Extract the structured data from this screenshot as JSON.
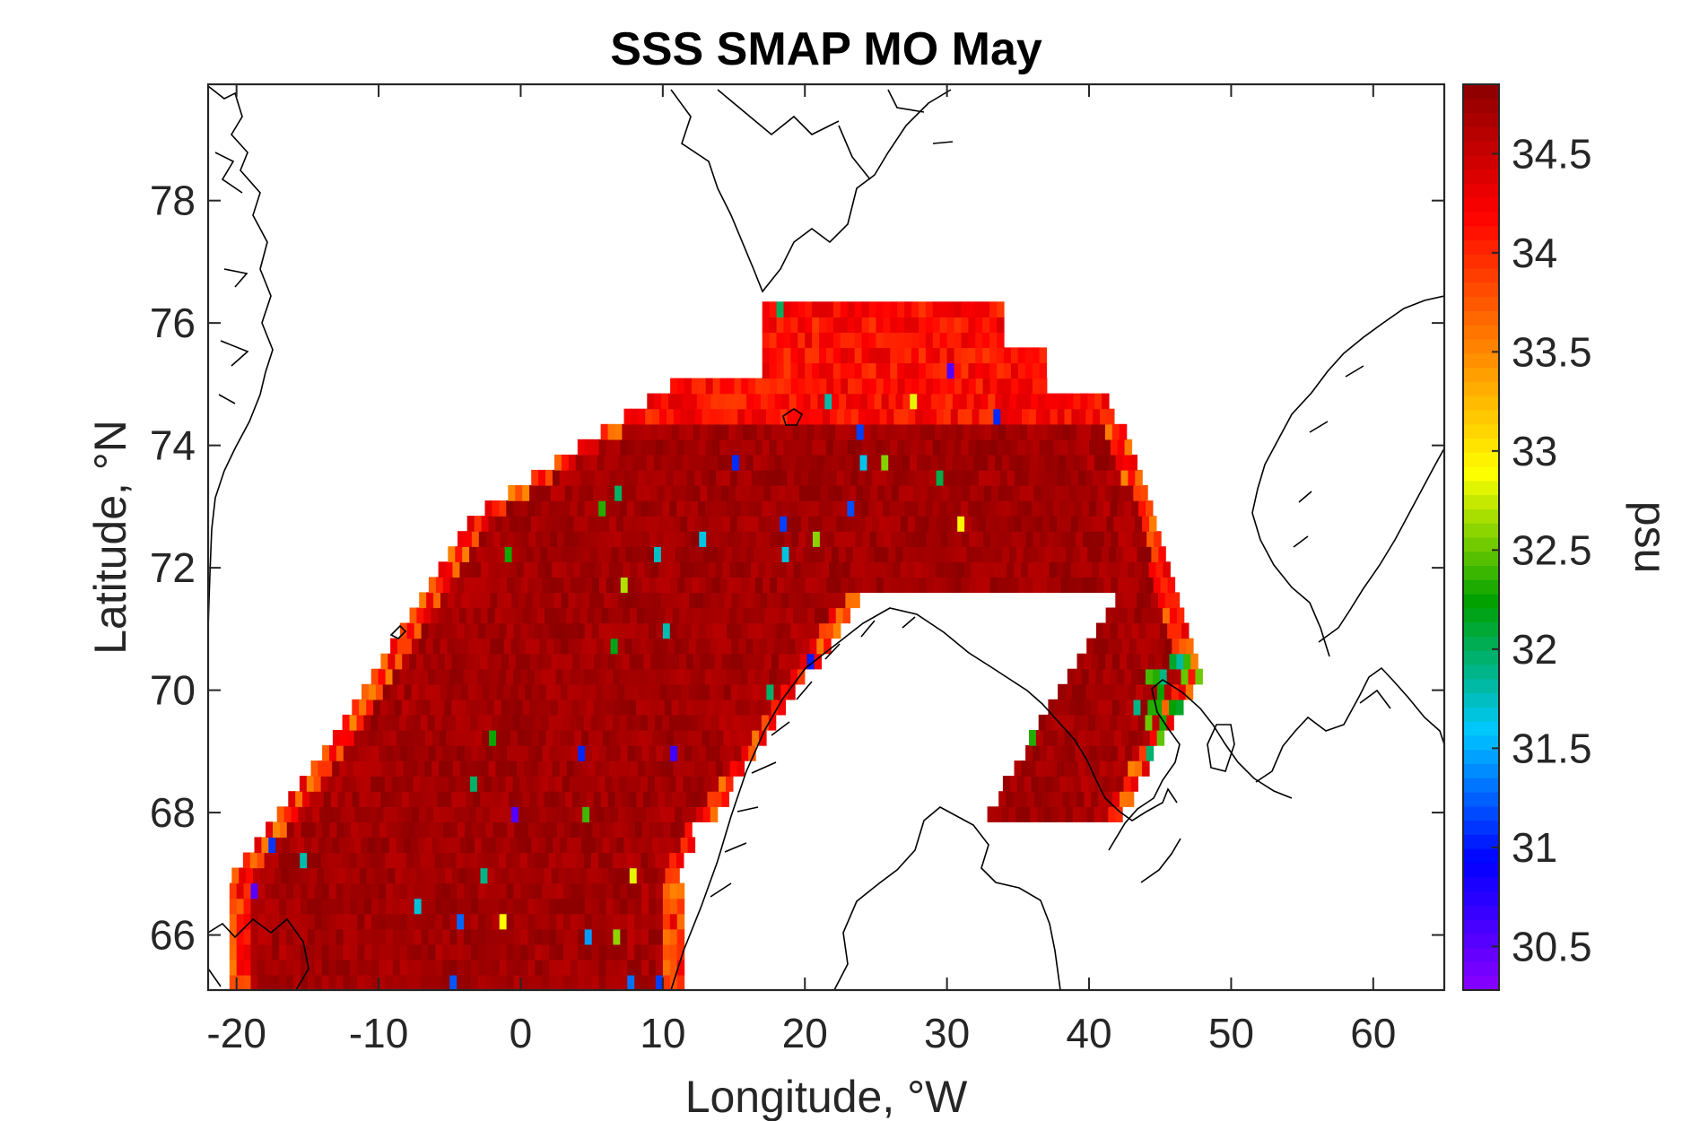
{
  "chart_data": {
    "type": "heatmap",
    "title": "SSS SMAP MO May",
    "xlabel": "Longitude, °W",
    "ylabel": "Latitude, °N",
    "colorbar_label": "psu",
    "xlim": [
      -22,
      65
    ],
    "ylim": [
      65.1,
      79.9
    ],
    "clim": [
      30.28,
      34.85
    ],
    "x_ticks": [
      -20,
      -10,
      0,
      10,
      20,
      30,
      40,
      50,
      60
    ],
    "x_tick_labels": [
      "-20",
      "-10",
      "0",
      "10",
      "20",
      "30",
      "40",
      "50",
      "60"
    ],
    "y_ticks": [
      66,
      68,
      70,
      72,
      74,
      76,
      78
    ],
    "y_tick_labels": [
      "66",
      "68",
      "70",
      "72",
      "74",
      "76",
      "78"
    ],
    "colorbar_ticks": [
      30.5,
      31,
      31.5,
      32,
      32.5,
      33,
      33.5,
      34,
      34.5
    ],
    "colorbar_tick_labels": [
      "30.5",
      "31",
      "31.5",
      "32",
      "32.5",
      "33",
      "33.5",
      "34",
      "34.5"
    ],
    "colormap": [
      "#8b00ff",
      "#0000ff",
      "#00c8ff",
      "#00a000",
      "#ffff00",
      "#ff8000",
      "#ff0000",
      "#8b0000"
    ],
    "grid": false,
    "region_salinity_psu": {
      "open_ocean_core": 34.85,
      "northern_edge": 34.4,
      "southeastern_coast_min": 31.8,
      "low_outliers_min": 30.5
    }
  }
}
